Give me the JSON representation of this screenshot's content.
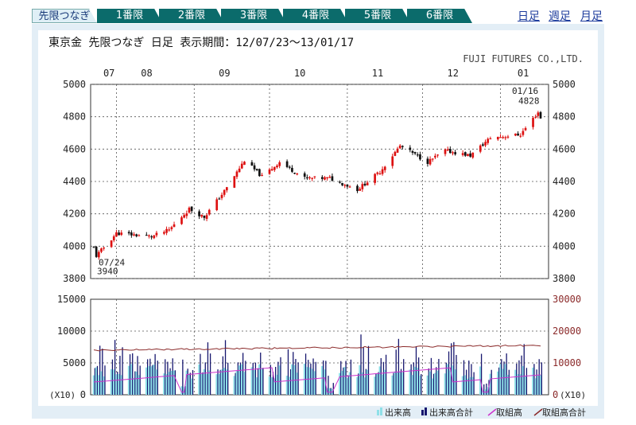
{
  "tabs": [
    {
      "label": "先限つなぎ",
      "active": true
    },
    {
      "label": "1番限"
    },
    {
      "label": "2番限"
    },
    {
      "label": "3番限"
    },
    {
      "label": "4番限"
    },
    {
      "label": "5番限"
    },
    {
      "label": "6番限"
    }
  ],
  "period_links": [
    "日足",
    "週足",
    "月足"
  ],
  "header": {
    "title": "東京金 先限つなぎ 日足 表示期間：12/07/23～13/01/17",
    "company": "FUJI FUTURES CO.,LTD."
  },
  "colors": {
    "tab": "#0b6b6b",
    "panel": "#e3eef6",
    "up": "#dd1111",
    "down": "#111111",
    "volume": "#8fe0e8",
    "volume_total": "#16166e",
    "oi": "#cc33cc",
    "oi_total": "#8b2a2a",
    "grid": "#555555"
  },
  "chart_data": [
    {
      "type": "candlestick",
      "x_month_labels": [
        "07",
        "08",
        "09",
        "10",
        "11",
        "12",
        "01"
      ],
      "ylim": [
        3800,
        5000
      ],
      "yticks": [
        3800,
        4000,
        4200,
        4400,
        4600,
        4800,
        5000
      ],
      "grid": true,
      "annotations": [
        {
          "date": "07/24",
          "value": "3940"
        },
        {
          "date": "01/16",
          "value": "4828"
        }
      ],
      "approx_close_path": [
        [
          "07/23",
          3990
        ],
        [
          "07/24",
          3940
        ],
        [
          "08/01",
          4080
        ],
        [
          "08/15",
          4060
        ],
        [
          "08/22",
          4100
        ],
        [
          "08/30",
          4230
        ],
        [
          "09/05",
          4180
        ],
        [
          "09/14",
          4360
        ],
        [
          "09/21",
          4530
        ],
        [
          "09/28",
          4430
        ],
        [
          "10/05",
          4520
        ],
        [
          "10/15",
          4420
        ],
        [
          "10/25",
          4420
        ],
        [
          "11/05",
          4350
        ],
        [
          "11/14",
          4460
        ],
        [
          "11/22",
          4620
        ],
        [
          "12/03",
          4520
        ],
        [
          "12/10",
          4590
        ],
        [
          "12/20",
          4560
        ],
        [
          "12/28",
          4670
        ],
        [
          "01/09",
          4690
        ],
        [
          "01/16",
          4828
        ],
        [
          "01/17",
          4790
        ]
      ]
    },
    {
      "type": "bar",
      "left_ylim": [
        0,
        15000
      ],
      "left_yticks": [
        0,
        5000,
        10000,
        15000
      ],
      "left_unit": "(X10)",
      "right_ylim": [
        0,
        30000
      ],
      "right_yticks": [
        0,
        10000,
        20000,
        30000
      ],
      "right_unit": "(X10)",
      "legend_position": "bottom-right",
      "legend": [
        "出来高",
        "出来高合計",
        "取組高",
        "取組高合計"
      ]
    }
  ]
}
